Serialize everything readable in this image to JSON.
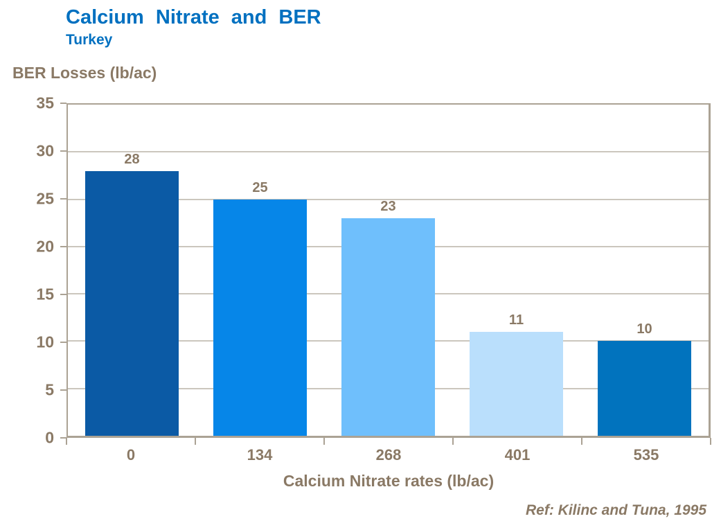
{
  "header": {
    "title": "Calcium Nitrate and BER",
    "subtitle": "Turkey"
  },
  "chart_data": {
    "type": "bar",
    "title": "Calcium Nitrate and BER",
    "subtitle": "Turkey",
    "ylabel": "BER Losses (lb/ac)",
    "xlabel": "Calcium Nitrate rates (lb/ac)",
    "categories": [
      "0",
      "134",
      "268",
      "401",
      "535"
    ],
    "values": [
      28,
      25,
      23,
      11,
      10
    ],
    "value_labels": [
      "28",
      "25",
      "23",
      "11",
      "10"
    ],
    "ylim": [
      0,
      35
    ],
    "yticks": [
      0,
      5,
      10,
      15,
      20,
      25,
      30,
      35
    ],
    "grid": true,
    "legend_position": "none",
    "bar_colors": [
      "#0B5AA5",
      "#0686E8",
      "#6FBFFC",
      "#BADFFC",
      "#0173BE"
    ]
  },
  "footer": {
    "reference": "Ref: Kilinc and Tuna, 1995"
  },
  "colors": {
    "title_text": "#0070C0",
    "axis_text": "#8A7965",
    "plot_border": "#ABA294",
    "gridline": "#CBC6BD",
    "background": "#FFFFFF"
  }
}
